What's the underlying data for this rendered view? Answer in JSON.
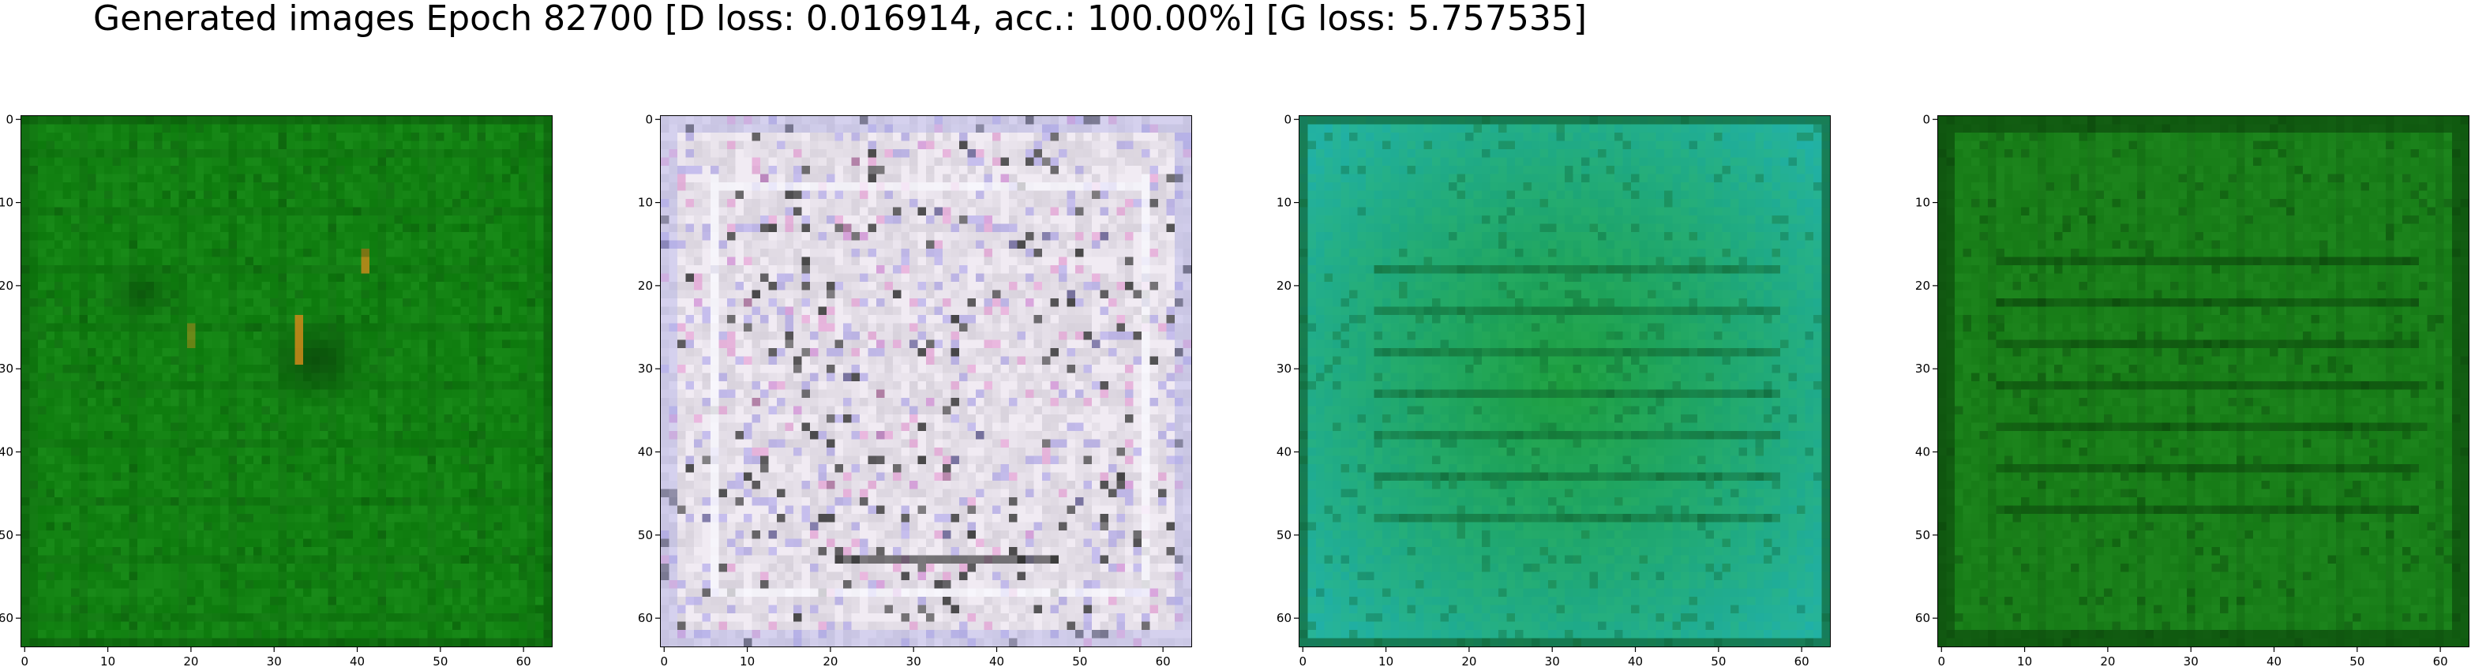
{
  "figure": {
    "title": "Generated images Epoch 82700 [D loss: 0.016914, acc.: 100.00%] [G loss: 5.757535]"
  },
  "chart_data": [
    {
      "type": "heatmap",
      "title": "",
      "xlabel": "",
      "ylabel": "",
      "xlim": [
        -0.5,
        63.5
      ],
      "ylim": [
        63.5,
        -0.5
      ],
      "xticks": [
        0,
        10,
        20,
        30,
        40,
        50,
        60
      ],
      "yticks": [
        0,
        10,
        20,
        30,
        40,
        50,
        60
      ],
      "grid": false,
      "palette": "green",
      "colors": {
        "base": "#0d7a0d",
        "dark": "#0a4a0a",
        "light": "#2aa32a",
        "accent": "#d08a1a"
      }
    },
    {
      "type": "heatmap",
      "title": "",
      "xlabel": "",
      "ylabel": "",
      "xlim": [
        -0.5,
        63.5
      ],
      "ylim": [
        63.5,
        -0.5
      ],
      "xticks": [
        0,
        10,
        20,
        30,
        40,
        50,
        60
      ],
      "yticks": [
        0,
        10,
        20,
        30,
        40,
        50,
        60
      ],
      "grid": false,
      "palette": "pastel-noise",
      "colors": {
        "base": "#d8d2dc",
        "dark": "#2a2a2a",
        "light": "#f4eef6",
        "accent": "#9a90e6"
      }
    },
    {
      "type": "heatmap",
      "title": "",
      "xlabel": "",
      "ylabel": "",
      "xlim": [
        -0.5,
        63.5
      ],
      "ylim": [
        63.5,
        -0.5
      ],
      "xticks": [
        0,
        10,
        20,
        30,
        40,
        50,
        60
      ],
      "yticks": [
        0,
        10,
        20,
        30,
        40,
        50,
        60
      ],
      "grid": false,
      "palette": "teal-green",
      "colors": {
        "base": "#1a9a3a",
        "dark": "#0e5a2a",
        "light": "#3cc060",
        "accent": "#20b0a8"
      }
    },
    {
      "type": "heatmap",
      "title": "",
      "xlabel": "",
      "ylabel": "",
      "xlim": [
        -0.5,
        63.5
      ],
      "ylim": [
        63.5,
        -0.5
      ],
      "xticks": [
        0,
        10,
        20,
        30,
        40,
        50,
        60
      ],
      "yticks": [
        0,
        10,
        20,
        30,
        40,
        50,
        60
      ],
      "grid": false,
      "palette": "dark-green",
      "colors": {
        "base": "#167a16",
        "dark": "#0a3e0a",
        "light": "#2a9a2a",
        "accent": "#0f5a12"
      }
    }
  ]
}
